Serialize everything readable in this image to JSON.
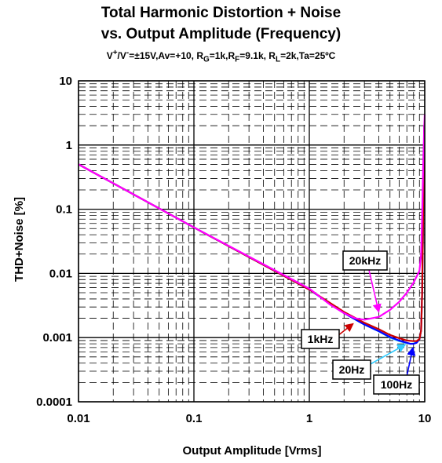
{
  "chart_data": {
    "type": "line",
    "title": "Total Harmonic Distortion + Noise",
    "subtitle": "vs. Output Amplitude (Frequency)",
    "conditions": {
      "v_main": "V",
      "v_sup1": "+",
      "v_mid": "/V",
      "v_sup2": "-",
      "seg1": "=±15V,Av=+10, R",
      "sub_g": "G",
      "seg2": "=1k,R",
      "sub_f": "F",
      "seg3": "=9.1k, R",
      "sub_l": "L",
      "seg4": "=2k,Ta=25ºC"
    },
    "xlabel": "Output Amplitude [Vrms]",
    "ylabel": "THD+Noise [%]",
    "xscale": "log",
    "yscale": "log",
    "xlim": [
      0.01,
      10
    ],
    "ylim": [
      0.0001,
      10
    ],
    "grid": true,
    "x_tick_labels": [
      "0.01",
      "0.1",
      "1",
      "10"
    ],
    "x_tick_values": [
      0.01,
      0.1,
      1,
      10
    ],
    "y_tick_labels": [
      "0.0001",
      "0.001",
      "0.01",
      "0.1",
      "1",
      "10"
    ],
    "y_tick_values": [
      0.0001,
      0.001,
      0.01,
      0.1,
      1,
      10
    ],
    "series": [
      {
        "name": "20Hz",
        "color": "#33ccff",
        "x": [
          0.01,
          0.1,
          1,
          2,
          3,
          4,
          5,
          6,
          7,
          7.5,
          8,
          8.5,
          9,
          9.3,
          9.5,
          9.7,
          9.9
        ],
        "y": [
          0.5,
          0.052,
          0.0056,
          0.0024,
          0.0016,
          0.00125,
          0.001,
          0.00088,
          0.00082,
          0.0008,
          0.00081,
          0.00084,
          0.00095,
          0.0013,
          0.005,
          0.1,
          2
        ]
      },
      {
        "name": "100Hz",
        "color": "#0000ff",
        "x": [
          0.01,
          0.1,
          1,
          2,
          3,
          4,
          5,
          6,
          7,
          7.5,
          8,
          8.5,
          9,
          9.3,
          9.5,
          9.7,
          9.9
        ],
        "y": [
          0.5,
          0.052,
          0.0056,
          0.0024,
          0.0016,
          0.00126,
          0.00102,
          0.0009,
          0.00083,
          0.0008,
          0.0008,
          0.00083,
          0.00094,
          0.0013,
          0.005,
          0.1,
          2
        ]
      },
      {
        "name": "1kHz",
        "color": "#cc0000",
        "x": [
          0.01,
          0.1,
          1,
          2,
          3,
          4,
          5,
          6,
          7,
          8,
          8.5,
          9,
          9.3,
          9.5,
          9.7,
          9.9
        ],
        "y": [
          0.5,
          0.052,
          0.0056,
          0.0025,
          0.0017,
          0.00135,
          0.0011,
          0.00098,
          0.0009,
          0.00088,
          0.00088,
          0.00095,
          0.0013,
          0.005,
          0.1,
          2
        ]
      },
      {
        "name": "20kHz",
        "color": "#ff00ff",
        "x": [
          0.01,
          0.1,
          1,
          1.5,
          2,
          2.5,
          3,
          4,
          5,
          6,
          7,
          8,
          9,
          9.3,
          9.5,
          9.7,
          9.9,
          10
        ],
        "y": [
          0.5,
          0.052,
          0.0058,
          0.0033,
          0.0024,
          0.002,
          0.0019,
          0.0021,
          0.0027,
          0.0036,
          0.005,
          0.0072,
          0.011,
          0.02,
          0.08,
          0.5,
          2,
          3
        ]
      }
    ],
    "annotations": [
      {
        "label": "20kHz",
        "series": "20kHz",
        "arrow_color": "#ff00ff",
        "target": [
          4,
          0.0025
        ]
      },
      {
        "label": "1kHz",
        "series": "1kHz",
        "arrow_color": "#cc0000",
        "target": [
          2.4,
          0.00165
        ]
      },
      {
        "label": "20Hz",
        "series": "20Hz",
        "arrow_color": "#33ccff",
        "target": [
          6.8,
          0.00078
        ]
      },
      {
        "label": "100Hz",
        "series": "100Hz",
        "arrow_color": "#0000ff",
        "target": [
          7.9,
          0.0007
        ]
      }
    ]
  }
}
